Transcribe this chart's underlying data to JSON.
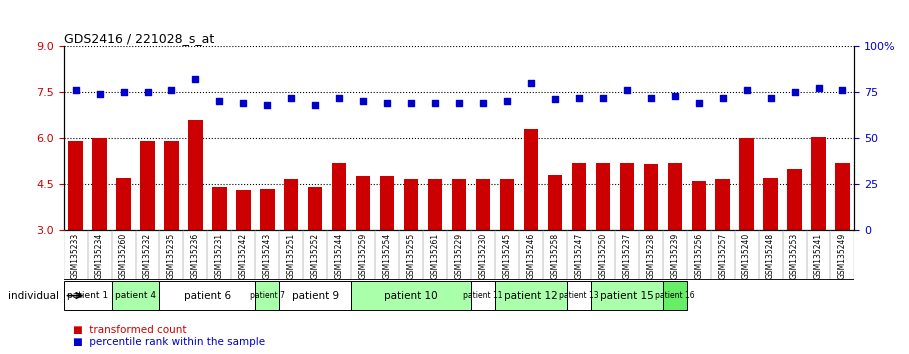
{
  "title": "GDS2416 / 221028_s_at",
  "samples": [
    "GSM135233",
    "GSM135234",
    "GSM135260",
    "GSM135232",
    "GSM135235",
    "GSM135236",
    "GSM135231",
    "GSM135242",
    "GSM135243",
    "GSM135251",
    "GSM135252",
    "GSM135244",
    "GSM135259",
    "GSM135254",
    "GSM135255",
    "GSM135261",
    "GSM135229",
    "GSM135230",
    "GSM135245",
    "GSM135246",
    "GSM135258",
    "GSM135247",
    "GSM135250",
    "GSM135237",
    "GSM135238",
    "GSM135239",
    "GSM135256",
    "GSM135257",
    "GSM135240",
    "GSM135248",
    "GSM135253",
    "GSM135241",
    "GSM135249"
  ],
  "bar_values": [
    5.9,
    6.0,
    4.7,
    5.9,
    5.9,
    6.6,
    4.4,
    4.3,
    4.35,
    4.65,
    4.4,
    5.2,
    4.75,
    4.75,
    4.65,
    4.65,
    4.65,
    4.65,
    4.65,
    6.3,
    4.8,
    5.2,
    5.2,
    5.2,
    5.15,
    5.2,
    4.6,
    4.65,
    6.0,
    4.7,
    5.0,
    6.05,
    5.2
  ],
  "dot_values": [
    76,
    74,
    75,
    75,
    76,
    82,
    70,
    69,
    68,
    72,
    68,
    72,
    70,
    69,
    69,
    69,
    69,
    69,
    70,
    80,
    71,
    72,
    72,
    76,
    72,
    73,
    69,
    72,
    76,
    72,
    75,
    77,
    76
  ],
  "patient_spans": [
    {
      "label": "patient 1",
      "start": 0,
      "end": 2,
      "color": "#ffffff"
    },
    {
      "label": "patient 4",
      "start": 2,
      "end": 4,
      "color": "#aaffaa"
    },
    {
      "label": "patient 6",
      "start": 4,
      "end": 8,
      "color": "#ffffff"
    },
    {
      "label": "patient 7",
      "start": 8,
      "end": 9,
      "color": "#aaffaa"
    },
    {
      "label": "patient 9",
      "start": 9,
      "end": 12,
      "color": "#ffffff"
    },
    {
      "label": "patient 10",
      "start": 12,
      "end": 17,
      "color": "#aaffaa"
    },
    {
      "label": "patient 11",
      "start": 17,
      "end": 18,
      "color": "#ffffff"
    },
    {
      "label": "patient 12",
      "start": 18,
      "end": 21,
      "color": "#aaffaa"
    },
    {
      "label": "patient 13",
      "start": 21,
      "end": 22,
      "color": "#ffffff"
    },
    {
      "label": "patient 15",
      "start": 22,
      "end": 25,
      "color": "#aaffaa"
    },
    {
      "label": "patient 16",
      "start": 25,
      "end": 26,
      "color": "#66ee66"
    }
  ],
  "ylim_left": [
    3,
    9
  ],
  "ylim_right": [
    0,
    100
  ],
  "yticks_left": [
    3,
    4.5,
    6,
    7.5,
    9
  ],
  "yticks_right": [
    0,
    25,
    50,
    75,
    100
  ],
  "bar_color": "#cc0000",
  "dot_color": "#0000cc",
  "xtick_bg": "#d0d0d0"
}
